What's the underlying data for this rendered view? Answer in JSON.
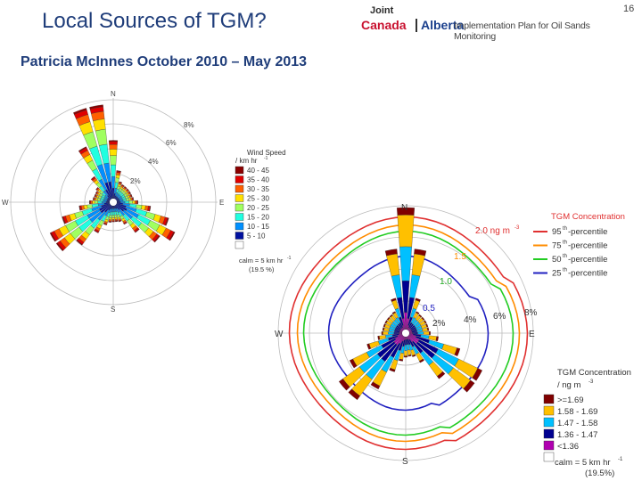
{
  "header": {
    "title": "Local Sources of TGM?",
    "subtitle": "Patricia McInnes October 2010 – May 2013",
    "page_number": "16"
  },
  "logo": {
    "joint": "Joint",
    "canada": "Canada",
    "alberta": "Alberta",
    "plan": "Implementation Plan for Oil Sands Monitoring"
  },
  "wind_rose": {
    "directions": {
      "n": "N",
      "e": "E",
      "s": "S",
      "w": "W"
    },
    "rings": [
      "2%",
      "4%",
      "6%",
      "8%"
    ],
    "legend_title": "Wind Speed",
    "legend_unit": "/ km hr",
    "legend_unit_sup": "-1",
    "legend_items": [
      {
        "label": "40 - 45",
        "color": "#8b0000"
      },
      {
        "label": "35 - 40",
        "color": "#e00000"
      },
      {
        "label": "30 - 35",
        "color": "#ff6000"
      },
      {
        "label": "25 - 30",
        "color": "#ffe000"
      },
      {
        "label": "20 - 25",
        "color": "#a0ff60"
      },
      {
        "label": "15 - 20",
        "color": "#20ffe0"
      },
      {
        "label": "10 - 15",
        "color": "#0090ff"
      },
      {
        "label": "5 - 10",
        "color": "#0010a0"
      }
    ],
    "calm_label": "calm = 5 km hr",
    "calm_sup": "-1",
    "calm_pct": "(19.5 %)"
  },
  "tgm_rose": {
    "directions": {
      "n": "N",
      "e": "E",
      "s": "S",
      "w": "W"
    },
    "rings": [
      "2%",
      "4%",
      "6%",
      "8%"
    ],
    "contour_labels": [
      "2.0 ng m",
      "1.5",
      "1.0",
      "0.5"
    ],
    "contour_unit_sup": "-3",
    "percentile_title": "TGM Concentration",
    "percentiles": [
      {
        "label": "95",
        "sup": "th",
        "suffix": "-percentile",
        "color": "#e03030"
      },
      {
        "label": "75",
        "sup": "th",
        "suffix": "-percentile",
        "color": "#ff8c00"
      },
      {
        "label": "50",
        "sup": "th",
        "suffix": "-percentile",
        "color": "#22cc22"
      },
      {
        "label": "25",
        "sup": "th",
        "suffix": "-percentile",
        "color": "#2020c0"
      }
    ],
    "legend_title": "TGM Concentration",
    "legend_unit": "/ ng m",
    "legend_unit_sup": "-3",
    "legend_items": [
      {
        "label": ">=1.69",
        "color": "#800000"
      },
      {
        "label": "1.58 - 1.69",
        "color": "#ffc000"
      },
      {
        "label": "1.47 - 1.58",
        "color": "#00c0ff"
      },
      {
        "label": "1.36 - 1.47",
        "color": "#000090"
      },
      {
        "label": "<1.36",
        "color": "#b000b0"
      }
    ],
    "calm_label": "calm = 5 km hr",
    "calm_sup": "-1",
    "calm_pct": "(19.5%)"
  }
}
